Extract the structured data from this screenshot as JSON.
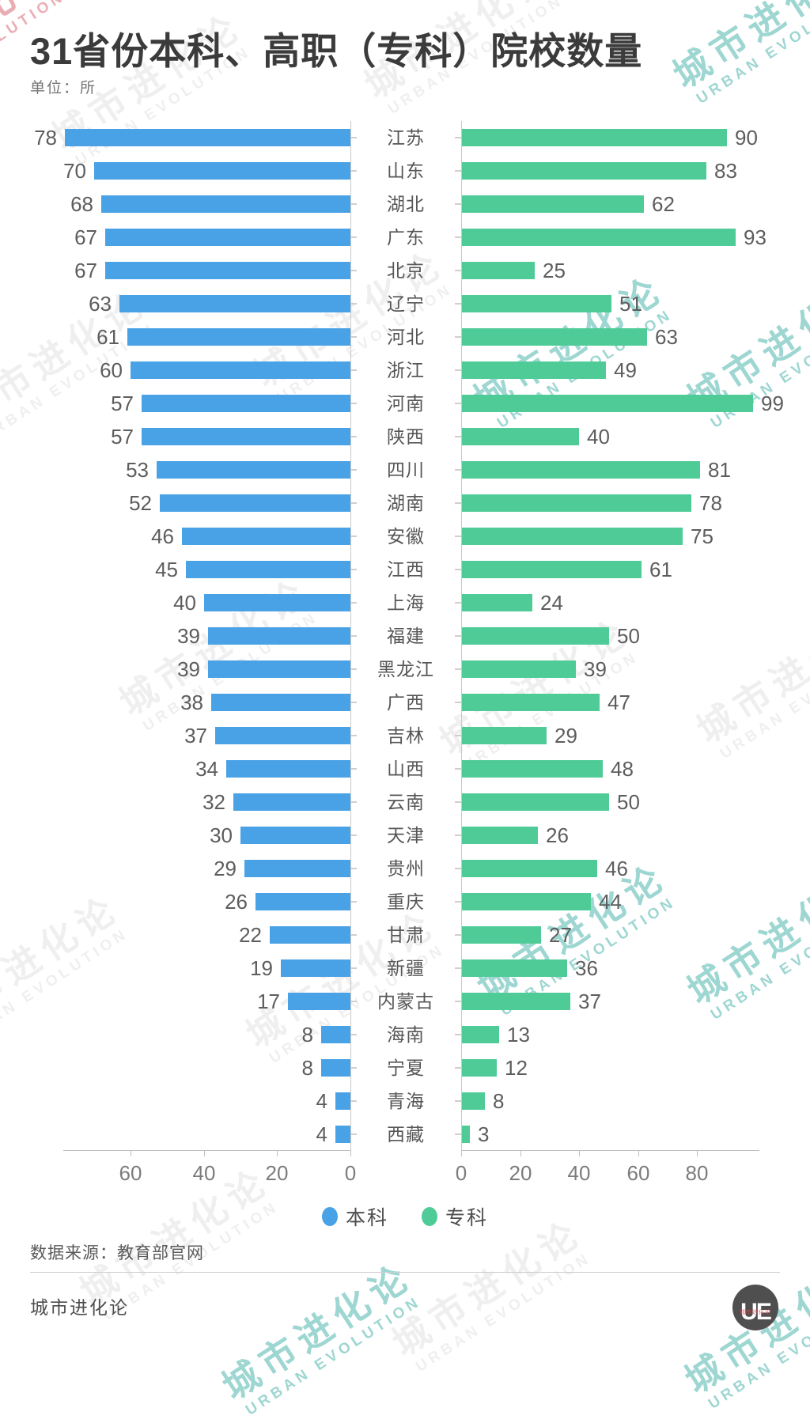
{
  "title": "31省份本科、高职（专科）院校数量",
  "unit_label": "单位：所",
  "source": "数据来源：教育部官网",
  "brand": "城市进化论",
  "logo": {
    "text": "UE",
    "subtext": "城市进化论"
  },
  "watermark": {
    "line1": "城市进化论",
    "line2": "URBAN EVOLUTION"
  },
  "colors": {
    "bachelor": "#4AA2E6",
    "vocational": "#4FCB98",
    "axis": "#bfbfbf"
  },
  "legend": [
    {
      "label": "本科",
      "color": "#4AA2E6"
    },
    {
      "label": "专科",
      "color": "#4FCB98"
    }
  ],
  "chart_data": {
    "type": "bar",
    "orientation": "horizontal-diverging",
    "title": "31省份本科、高职（专科）院校数量",
    "unit": "所",
    "legend_position": "bottom",
    "grid": false,
    "categories": [
      "江苏",
      "山东",
      "湖北",
      "广东",
      "北京",
      "辽宁",
      "河北",
      "浙江",
      "河南",
      "陕西",
      "四川",
      "湖南",
      "安徽",
      "江西",
      "上海",
      "福建",
      "黑龙江",
      "广西",
      "吉林",
      "山西",
      "云南",
      "天津",
      "贵州",
      "重庆",
      "甘肃",
      "新疆",
      "内蒙古",
      "海南",
      "宁夏",
      "青海",
      "西藏"
    ],
    "series": [
      {
        "name": "本科",
        "side": "left",
        "color": "#4AA2E6",
        "values": [
          78,
          70,
          68,
          67,
          67,
          63,
          61,
          60,
          57,
          57,
          53,
          52,
          46,
          45,
          40,
          39,
          39,
          38,
          37,
          34,
          32,
          30,
          29,
          26,
          22,
          19,
          17,
          8,
          8,
          4,
          4
        ]
      },
      {
        "name": "专科",
        "side": "right",
        "color": "#4FCB98",
        "values": [
          90,
          83,
          62,
          93,
          25,
          51,
          63,
          49,
          99,
          40,
          81,
          78,
          75,
          61,
          24,
          50,
          39,
          47,
          29,
          48,
          50,
          26,
          46,
          44,
          27,
          36,
          37,
          13,
          12,
          8,
          3
        ]
      }
    ],
    "left_axis_ticks": [
      60,
      40,
      20,
      0
    ],
    "right_axis_ticks": [
      0,
      20,
      40,
      60,
      80
    ],
    "left_xlim": [
      0,
      78.5
    ],
    "right_xlim": [
      0,
      99.5
    ]
  }
}
